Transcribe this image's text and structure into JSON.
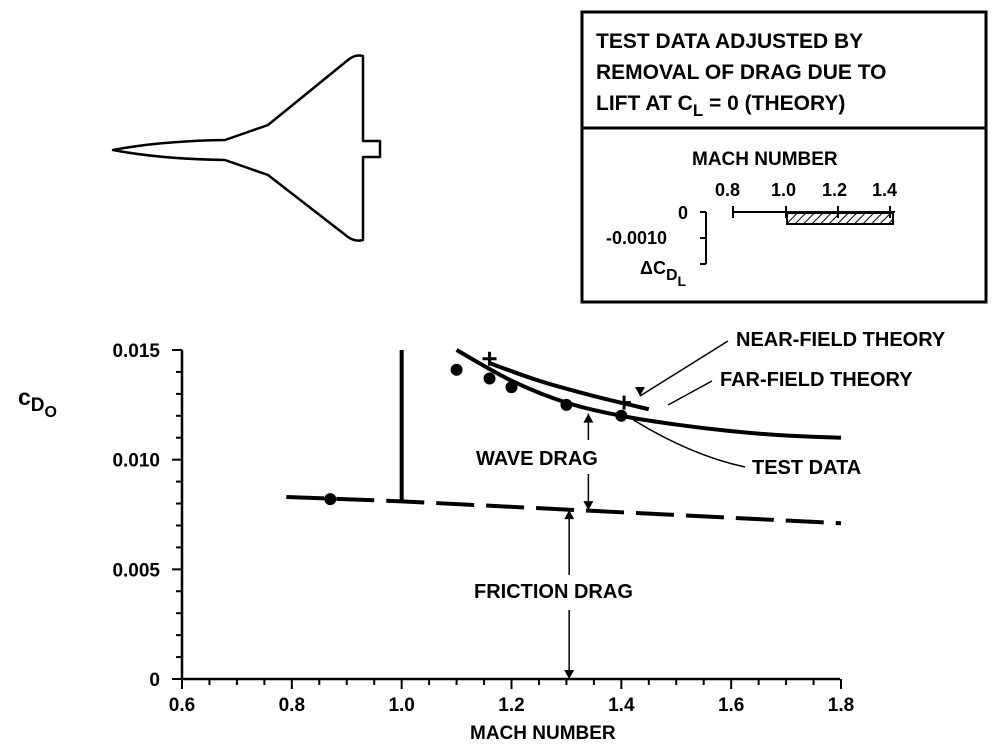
{
  "inset": {
    "title_lines": [
      "TEST DATA ADJUSTED BY",
      "REMOVAL OF DRAG DUE TO"
    ],
    "title_line3_prefix": "LIFT AT C",
    "title_line3_sub": "L",
    "title_line3_suffix": " = 0 (THEORY)",
    "mach_label": "MACH NUMBER",
    "mach_ticks": [
      "0.8",
      "1.0",
      "1.2",
      "1.4"
    ],
    "y_ticks": [
      "0",
      "-0.0010"
    ],
    "y_label_main": "ΔC",
    "y_label_sub1": "D",
    "y_label_sub2": "L"
  },
  "chart_data": {
    "type": "line",
    "ylabel_main": "c",
    "ylabel_sub1": "D",
    "ylabel_sub2": "O",
    "xlabel": "MACH NUMBER",
    "xlim": [
      0.55,
      1.8
    ],
    "ylim": [
      0,
      0.015
    ],
    "x_ticks": [
      0.6,
      0.8,
      1.0,
      1.2,
      1.4,
      1.6,
      1.8
    ],
    "x_tick_labels": [
      "0.6",
      "0.8",
      "1.0",
      "1.2",
      "1.4",
      "1.6",
      "1.8"
    ],
    "y_ticks": [
      0,
      0.005,
      0.01,
      0.015
    ],
    "y_tick_labels": [
      "0",
      "0.005",
      "0.010",
      "0.015"
    ],
    "series": [
      {
        "name": "NEAR-FIELD THEORY",
        "style": "solid",
        "x": [
          1.16,
          1.25,
          1.35,
          1.45
        ],
        "y": [
          0.0144,
          0.0136,
          0.0129,
          0.0123
        ],
        "markers_plus": {
          "x": [
            1.16,
            1.405
          ],
          "y": [
            0.0146,
            0.0126
          ]
        }
      },
      {
        "name": "FAR-FIELD THEORY",
        "style": "solid",
        "x": [
          1.1,
          1.2,
          1.3,
          1.4,
          1.5,
          1.6,
          1.7,
          1.8
        ],
        "y": [
          0.015,
          0.0136,
          0.0126,
          0.012,
          0.0116,
          0.0113,
          0.0111,
          0.011
        ]
      },
      {
        "name": "TEST DATA",
        "style": "markers",
        "x": [
          0.87,
          1.1,
          1.16,
          1.2,
          1.3,
          1.4
        ],
        "y": [
          0.0082,
          0.0141,
          0.0137,
          0.0133,
          0.0125,
          0.012
        ]
      },
      {
        "name": "FRICTION DRAG",
        "style": "dashed",
        "x": [
          0.79,
          1.0,
          1.8
        ],
        "y": [
          0.0083,
          0.0081,
          0.0071
        ]
      },
      {
        "name": "transonic wave-drag rise",
        "style": "solid",
        "x": [
          1.0,
          1.0
        ],
        "y": [
          0.0081,
          0.015
        ]
      }
    ],
    "annotations": {
      "near_field": "NEAR-FIELD THEORY",
      "far_field": "FAR-FIELD THEORY",
      "test_data": "TEST DATA",
      "wave_drag": "WAVE DRAG",
      "friction_drag": "FRICTION DRAG"
    }
  }
}
